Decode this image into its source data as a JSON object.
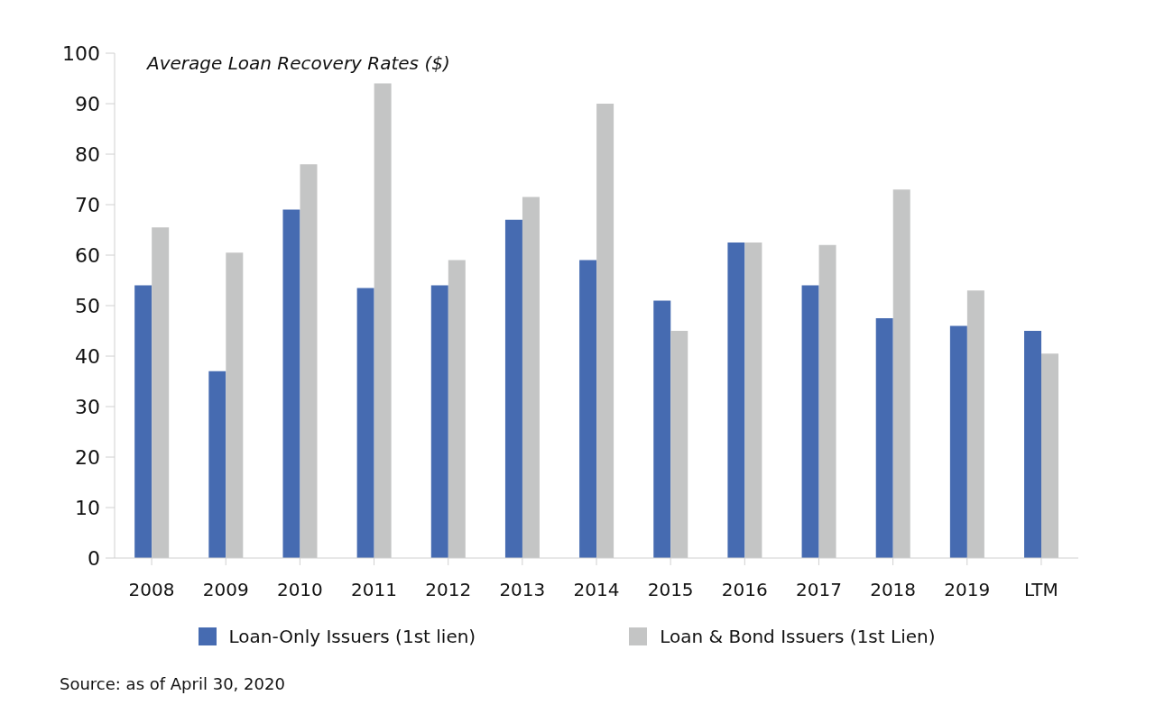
{
  "chart_data": {
    "type": "bar",
    "title": "Average Loan Recovery Rates ($)",
    "categories": [
      "2008",
      "2009",
      "2010",
      "2011",
      "2012",
      "2013",
      "2014",
      "2015",
      "2016",
      "2017",
      "2018",
      "2019",
      "LTM"
    ],
    "series": [
      {
        "name": "Loan-Only Issuers (1st lien)",
        "color": "#466bb1",
        "values": [
          54,
          37,
          69,
          53.5,
          54,
          67,
          59,
          51,
          62.5,
          54,
          47.5,
          46,
          45
        ]
      },
      {
        "name": "Loan & Bond Issuers (1st Lien)",
        "color": "#c4c5c5",
        "values": [
          65.5,
          60.5,
          78,
          94,
          59,
          71.5,
          90,
          45,
          62.5,
          62,
          73,
          53,
          40.5
        ]
      }
    ],
    "ylim": [
      0,
      100
    ],
    "yticks": [
      0,
      10,
      20,
      30,
      40,
      50,
      60,
      70,
      80,
      90,
      100
    ],
    "grid": false,
    "legend": "bottom",
    "annotations": [
      "Source: as of April 30, 2020"
    ]
  }
}
